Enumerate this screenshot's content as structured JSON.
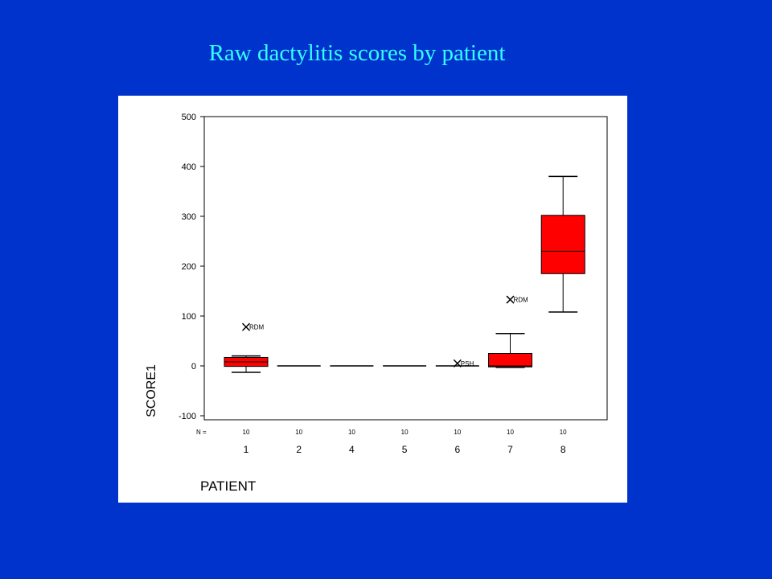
{
  "slide": {
    "title": "Raw dactylitis scores by patient"
  },
  "colors": {
    "background": "#0033cc",
    "title": "#33ffff",
    "box_fill": "#ff0000",
    "panel": "#ffffff"
  },
  "chart_data": {
    "type": "boxplot",
    "title": "",
    "xlabel": "PATIENT",
    "ylabel": "SCORE1",
    "ylim": [
      -100,
      500
    ],
    "yticks": [
      -100,
      0,
      100,
      200,
      300,
      400,
      500
    ],
    "n_label": "N =",
    "categories": [
      "1",
      "2",
      "4",
      "5",
      "6",
      "7",
      "8"
    ],
    "n": [
      "10",
      "10",
      "10",
      "10",
      "10",
      "10",
      "10"
    ],
    "boxes": [
      {
        "category": "1",
        "whisker_low": -13,
        "q1": -1,
        "median": 8,
        "q3": 17,
        "whisker_high": 20
      },
      {
        "category": "2",
        "whisker_low": 0,
        "q1": 0,
        "median": 0,
        "q3": 0,
        "whisker_high": 0
      },
      {
        "category": "4",
        "whisker_low": 0,
        "q1": 0,
        "median": 0,
        "q3": 0,
        "whisker_high": 0
      },
      {
        "category": "5",
        "whisker_low": 0,
        "q1": 0,
        "median": 0,
        "q3": 0,
        "whisker_high": 0
      },
      {
        "category": "6",
        "whisker_low": 0,
        "q1": 0,
        "median": 0,
        "q3": 0,
        "whisker_high": 0
      },
      {
        "category": "7",
        "whisker_low": -3,
        "q1": -2,
        "median": 0,
        "q3": 25,
        "whisker_high": 65
      },
      {
        "category": "8",
        "whisker_low": 108,
        "q1": 185,
        "median": 230,
        "q3": 302,
        "whisker_high": 380
      }
    ],
    "outliers": [
      {
        "category": "1",
        "value": 78,
        "label": "RDM"
      },
      {
        "category": "6",
        "value": 5,
        "label": "PSH"
      },
      {
        "category": "7",
        "value": 133,
        "label": "RDM"
      }
    ],
    "grid": false,
    "legend": "none"
  }
}
